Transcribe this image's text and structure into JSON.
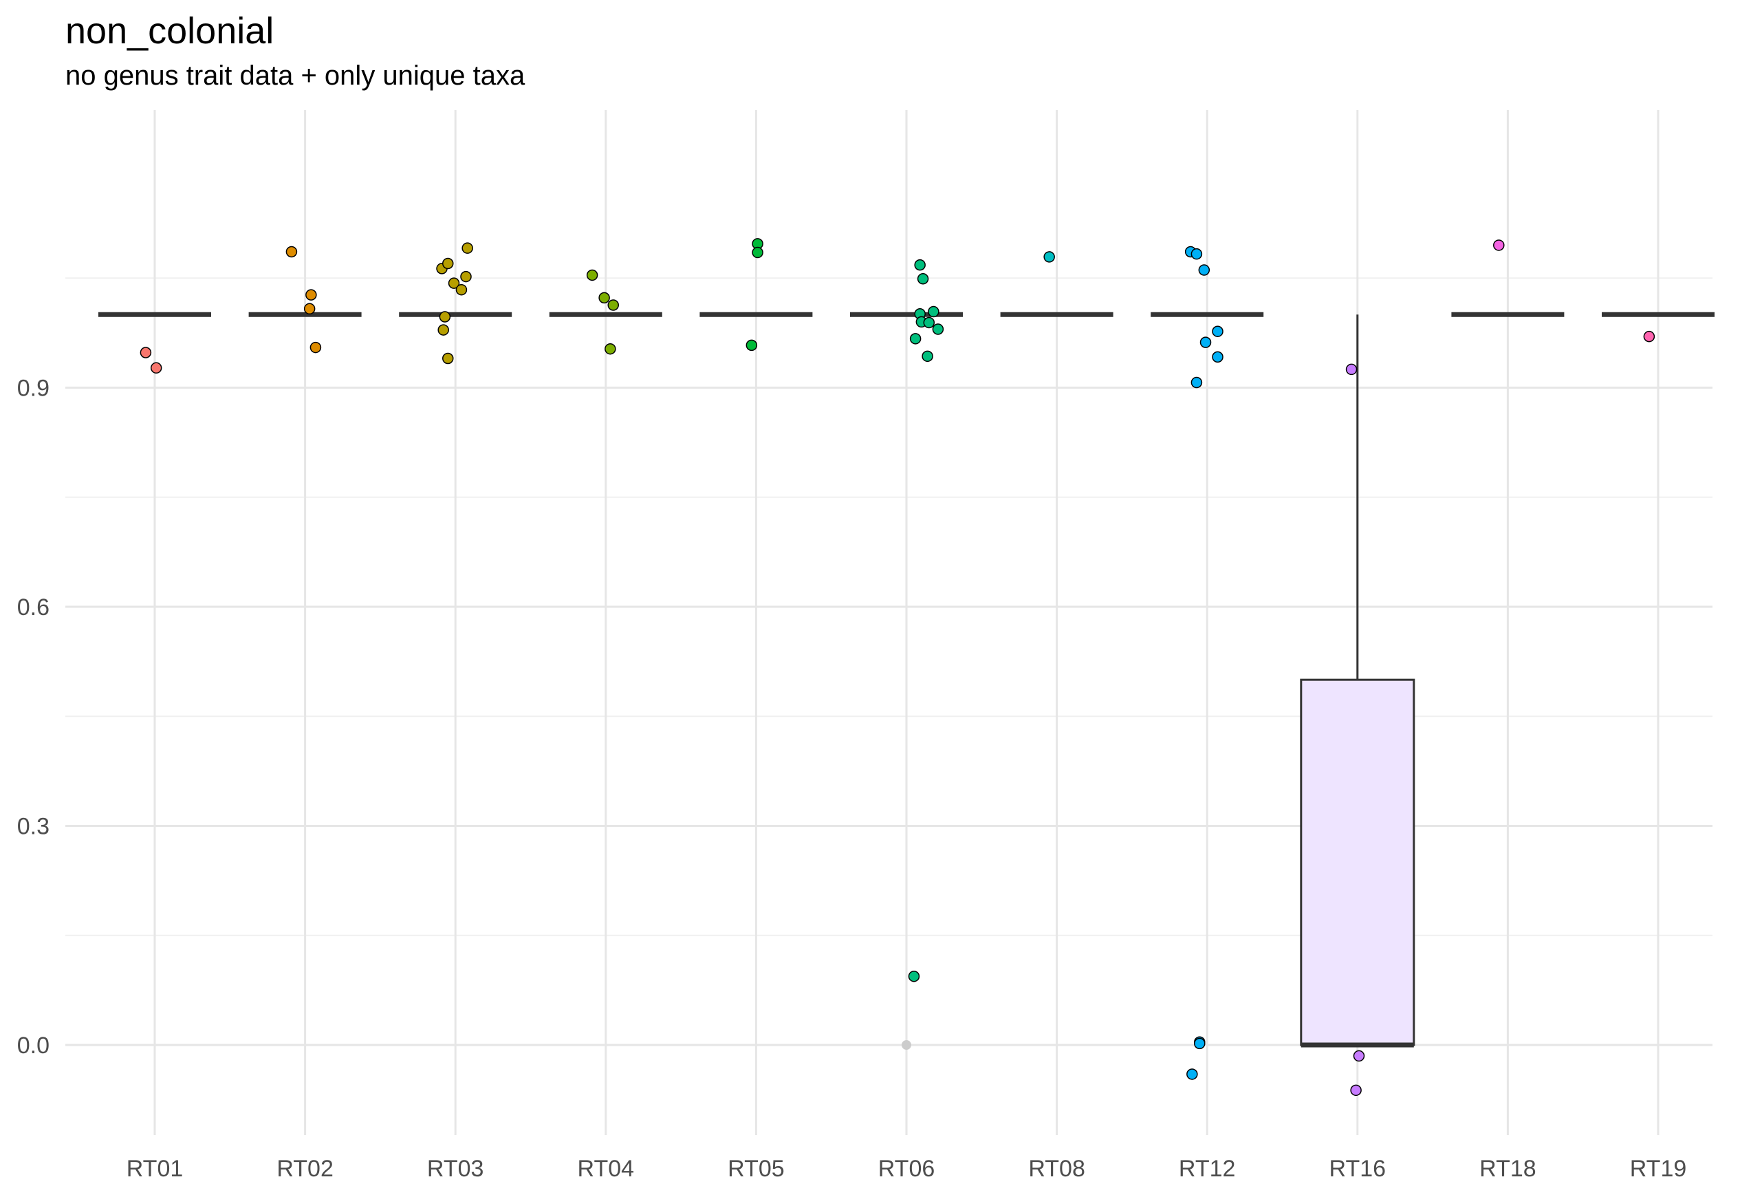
{
  "chart_data": {
    "type": "box",
    "title": "non_colonial",
    "subtitle": "no genus trait data + only unique taxa",
    "xlabel": "",
    "ylabel": "",
    "ylim": [
      -0.12,
      1.15
    ],
    "y_ticks": [
      0.0,
      0.3,
      0.6,
      0.9
    ],
    "y_tick_labels": [
      "0.0",
      "0.3",
      "0.6",
      "0.9"
    ],
    "grid": true,
    "categories": [
      "RT01",
      "RT02",
      "RT03",
      "RT04",
      "RT05",
      "RT06",
      "RT08",
      "RT12",
      "RT16",
      "RT18",
      "RT19"
    ],
    "boxes": [
      {
        "category": "RT01",
        "q1": 1.0,
        "median": 1.0,
        "q3": 1.0,
        "whisker_low": 1.0,
        "whisker_high": 1.0
      },
      {
        "category": "RT02",
        "q1": 1.0,
        "median": 1.0,
        "q3": 1.0,
        "whisker_low": 1.0,
        "whisker_high": 1.0
      },
      {
        "category": "RT03",
        "q1": 1.0,
        "median": 1.0,
        "q3": 1.0,
        "whisker_low": 1.0,
        "whisker_high": 1.0
      },
      {
        "category": "RT04",
        "q1": 1.0,
        "median": 1.0,
        "q3": 1.0,
        "whisker_low": 1.0,
        "whisker_high": 1.0
      },
      {
        "category": "RT05",
        "q1": 1.0,
        "median": 1.0,
        "q3": 1.0,
        "whisker_low": 1.0,
        "whisker_high": 1.0
      },
      {
        "category": "RT06",
        "q1": 1.0,
        "median": 1.0,
        "q3": 1.0,
        "whisker_low": 1.0,
        "whisker_high": 1.0
      },
      {
        "category": "RT08",
        "q1": 1.0,
        "median": 1.0,
        "q3": 1.0,
        "whisker_low": 1.0,
        "whisker_high": 1.0
      },
      {
        "category": "RT12",
        "q1": 1.0,
        "median": 1.0,
        "q3": 1.0,
        "whisker_low": 1.0,
        "whisker_high": 1.0
      },
      {
        "category": "RT16",
        "q1": 0.0,
        "median": 0.0,
        "q3": 0.5,
        "whisker_low": 0.0,
        "whisker_high": 1.0
      },
      {
        "category": "RT18",
        "q1": 1.0,
        "median": 1.0,
        "q3": 1.0,
        "whisker_low": 1.0,
        "whisker_high": 1.0
      },
      {
        "category": "RT19",
        "q1": 1.0,
        "median": 1.0,
        "q3": 1.0,
        "whisker_low": 1.0,
        "whisker_high": 1.0
      }
    ],
    "outliers": [
      {
        "category": "RT06",
        "y": 0.0
      }
    ],
    "series": [
      {
        "category": "RT01",
        "color": "#F8766D",
        "points": [
          [
            -0.06,
            0.948
          ],
          [
            0.01,
            0.927
          ]
        ]
      },
      {
        "category": "RT02",
        "color": "#DE8C00",
        "points": [
          [
            -0.09,
            1.086
          ],
          [
            0.04,
            1.027
          ],
          [
            0.03,
            1.008
          ],
          [
            0.07,
            0.955
          ]
        ]
      },
      {
        "category": "RT03",
        "color": "#B79F00",
        "points": [
          [
            -0.09,
            1.063
          ],
          [
            -0.05,
            1.07
          ],
          [
            0.08,
            1.091
          ],
          [
            -0.01,
            1.043
          ],
          [
            0.07,
            1.052
          ],
          [
            0.04,
            1.034
          ],
          [
            -0.07,
            0.997
          ],
          [
            -0.08,
            0.979
          ],
          [
            -0.05,
            0.94
          ]
        ]
      },
      {
        "category": "RT04",
        "color": "#7CAE00",
        "points": [
          [
            -0.09,
            1.054
          ],
          [
            -0.01,
            1.023
          ],
          [
            0.05,
            1.013
          ],
          [
            0.03,
            0.953
          ]
        ]
      },
      {
        "category": "RT05",
        "color": "#00BA38",
        "points": [
          [
            0.01,
            1.097
          ],
          [
            0.01,
            1.085
          ],
          [
            -0.03,
            0.958
          ]
        ]
      },
      {
        "category": "RT06",
        "color": "#00BF7D",
        "points": [
          [
            0.09,
            1.068
          ],
          [
            0.11,
            1.049
          ],
          [
            0.09,
            1.001
          ],
          [
            0.18,
            1.004
          ],
          [
            0.1,
            0.99
          ],
          [
            0.15,
            0.989
          ],
          [
            0.21,
            0.98
          ],
          [
            0.06,
            0.967
          ],
          [
            0.14,
            0.943
          ],
          [
            0.05,
            0.094
          ]
        ]
      },
      {
        "category": "RT08",
        "color": "#00BFC4",
        "points": [
          [
            -0.05,
            1.079
          ]
        ]
      },
      {
        "category": "RT12",
        "color": "#00B0F6",
        "points": [
          [
            -0.11,
            1.086
          ],
          [
            -0.07,
            1.083
          ],
          [
            -0.02,
            1.061
          ],
          [
            0.07,
            0.977
          ],
          [
            -0.01,
            0.962
          ],
          [
            0.07,
            0.942
          ],
          [
            -0.07,
            0.907
          ],
          [
            -0.1,
            -0.04
          ],
          [
            -0.05,
            0.004
          ],
          [
            -0.05,
            0.002
          ]
        ]
      },
      {
        "category": "RT16",
        "color": "#C77CFF",
        "points": [
          [
            -0.04,
            0.925
          ],
          [
            0.01,
            -0.015
          ],
          [
            -0.01,
            -0.062
          ]
        ]
      },
      {
        "category": "RT18",
        "color": "#F564E3",
        "points": [
          [
            -0.06,
            1.095
          ]
        ]
      },
      {
        "category": "RT19",
        "color": "#FF64B0",
        "points": [
          [
            -0.06,
            0.97
          ]
        ]
      }
    ]
  }
}
